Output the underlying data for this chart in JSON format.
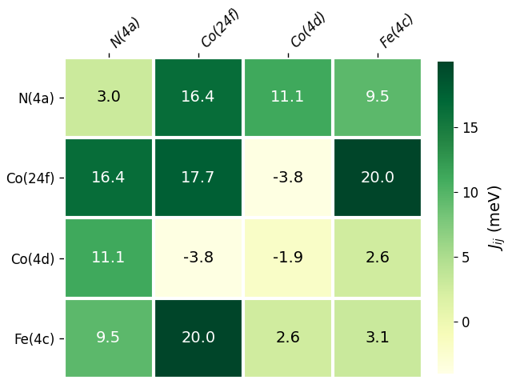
{
  "labels": [
    "N(4a)",
    "Co(24f)",
    "Co(4d)",
    "Fe(4c)"
  ],
  "matrix": [
    [
      3.0,
      16.4,
      11.1,
      9.5
    ],
    [
      16.4,
      17.7,
      -3.8,
      20.0
    ],
    [
      11.1,
      -3.8,
      -1.9,
      2.6
    ],
    [
      9.5,
      20.0,
      2.6,
      3.1
    ]
  ],
  "cmap": "YlGn",
  "vmin": -4.0,
  "vmax": 20.0,
  "colorbar_ticks": [
    0,
    5,
    10,
    15
  ],
  "colorbar_label": "$J_{ij}$ (meV)",
  "text_threshold": 7.0,
  "text_color_dark": "white",
  "text_color_light": "black",
  "fontsize_values": 14,
  "fontsize_labels": 12,
  "fontsize_colorbar": 14,
  "background_color": "#ffffff",
  "linewidth": 3
}
